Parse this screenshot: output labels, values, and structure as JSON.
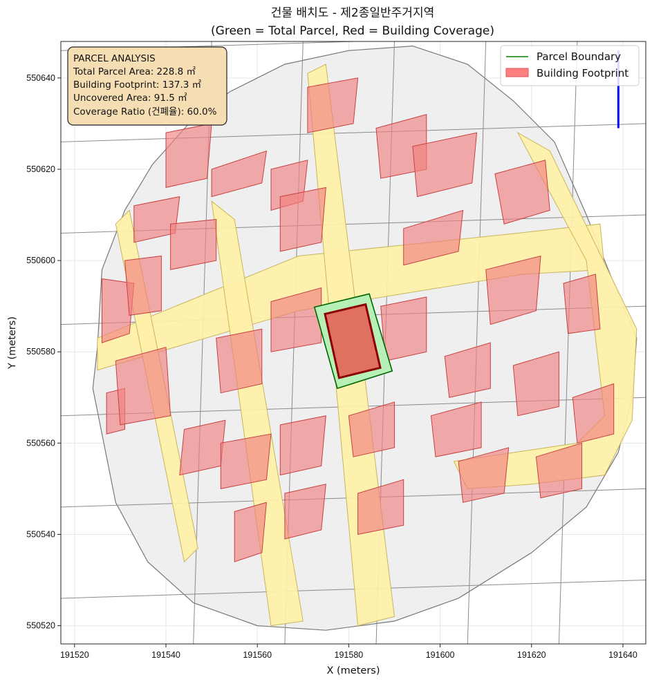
{
  "chart_data": {
    "type": "map",
    "title": "건물 배치도 - 제2종일반주거지역",
    "subtitle": "(Green = Total Parcel, Red = Building Coverage)",
    "xlabel": "X (meters)",
    "ylabel": "Y (meters)",
    "xlim": [
      191517,
      191645
    ],
    "ylim": [
      550516,
      550648
    ],
    "x_ticks": [
      191520,
      191540,
      191560,
      191580,
      191600,
      191620,
      191640
    ],
    "y_ticks": [
      550520,
      550540,
      550560,
      550580,
      550600,
      550620,
      550640
    ],
    "grid": true,
    "legend_position": "top-right",
    "legend": [
      {
        "label": "Parcel Boundary",
        "color": "#008000",
        "kind": "line"
      },
      {
        "label": "Building Footprint",
        "color": "#ff7f7f",
        "kind": "patch"
      }
    ],
    "info_box": {
      "lines": [
        "PARCEL ANALYSIS",
        "Total Parcel Area: 228.8 ㎡",
        "Building Footprint: 137.3 ㎡",
        "Uncovered Area: 91.5 ㎡",
        "Coverage Ratio (건폐율): 60.0%"
      ],
      "position": "top-left"
    },
    "metrics": {
      "total_parcel_area_m2": 228.8,
      "building_footprint_m2": 137.3,
      "uncovered_area_m2": 91.5,
      "coverage_ratio_pct": 60.0
    },
    "north_arrow": {
      "x": 191639,
      "y_start": 550629,
      "y_end": 550646,
      "color": "#0000ff"
    },
    "area_boundary": [
      [
        191525,
        550581
      ],
      [
        191526,
        550598
      ],
      [
        191531,
        550611
      ],
      [
        191537,
        550621
      ],
      [
        191545,
        550630
      ],
      [
        191554,
        550637
      ],
      [
        191566,
        550643
      ],
      [
        191580,
        550646
      ],
      [
        191594,
        550647
      ],
      [
        191606,
        550643
      ],
      [
        191616,
        550635
      ],
      [
        191625,
        550626
      ],
      [
        191632,
        550610
      ],
      [
        191638,
        550595
      ],
      [
        191643,
        550583
      ],
      [
        191642,
        550570
      ],
      [
        191639,
        550558
      ],
      [
        191632,
        550546
      ],
      [
        191620,
        550536
      ],
      [
        191604,
        550526
      ],
      [
        191590,
        550521
      ],
      [
        191575,
        550519
      ],
      [
        191560,
        550520
      ],
      [
        191546,
        550525
      ],
      [
        191536,
        550534
      ],
      [
        191529,
        550547
      ],
      [
        191526,
        550562
      ],
      [
        191524,
        550572
      ]
    ],
    "target_parcel": [
      [
        191572.5,
        550589.8
      ],
      [
        191584.5,
        550592.7
      ],
      [
        191589.5,
        550575.8
      ],
      [
        191577.5,
        550572.0
      ]
    ],
    "target_building": [
      [
        191574.8,
        550588.3
      ],
      [
        191583.7,
        550590.4
      ],
      [
        191586.9,
        550576.5
      ],
      [
        191577.9,
        550574.3
      ]
    ],
    "roads": [
      [
        [
          191525,
          550576
        ],
        [
          191569,
          550589
        ],
        [
          191618,
          550597
        ],
        [
          191636,
          550598
        ],
        [
          191635,
          550608
        ],
        [
          191617,
          550606
        ],
        [
          191569,
          550601
        ],
        [
          191525,
          550583
        ]
      ],
      [
        [
          191529,
          550608
        ],
        [
          191532,
          550611
        ],
        [
          191547,
          550537
        ],
        [
          191544,
          550534
        ]
      ],
      [
        [
          191550,
          550613
        ],
        [
          191555,
          550609
        ],
        [
          191570,
          550521
        ],
        [
          191563,
          550520
        ]
      ],
      [
        [
          191571,
          550641
        ],
        [
          191575,
          550643
        ],
        [
          191590,
          550522
        ],
        [
          191582,
          550520
        ]
      ],
      [
        [
          191617,
          550628
        ],
        [
          191624,
          550624
        ],
        [
          191643,
          550585
        ],
        [
          191642,
          550565
        ],
        [
          191636,
          550553
        ],
        [
          191620,
          550551
        ],
        [
          191606,
          550550
        ],
        [
          191603,
          550556
        ],
        [
          191630,
          550560
        ],
        [
          191636,
          550566
        ],
        [
          191632,
          550600
        ]
      ]
    ],
    "buildings": [
      [
        [
          191527,
          550571
        ],
        [
          191531,
          550572
        ],
        [
          191531,
          550563
        ],
        [
          191527,
          550562
        ]
      ],
      [
        [
          191526,
          550596
        ],
        [
          191533,
          550595
        ],
        [
          191532,
          550584
        ],
        [
          191526,
          550582
        ]
      ],
      [
        [
          191529,
          550578
        ],
        [
          191540,
          550581
        ],
        [
          191541,
          550566
        ],
        [
          191530,
          550564
        ]
      ],
      [
        [
          191531,
          550600
        ],
        [
          191539,
          550601
        ],
        [
          191539,
          550589
        ],
        [
          191532,
          550588
        ]
      ],
      [
        [
          191533,
          550612
        ],
        [
          191543,
          550614
        ],
        [
          191542,
          550606
        ],
        [
          191533,
          550604
        ]
      ],
      [
        [
          191540,
          550628
        ],
        [
          191550,
          550630
        ],
        [
          191549,
          550618
        ],
        [
          191540,
          550616
        ]
      ],
      [
        [
          191541,
          550608
        ],
        [
          191551,
          550609
        ],
        [
          191551,
          550600
        ],
        [
          191541,
          550598
        ]
      ],
      [
        [
          191544,
          550563
        ],
        [
          191553,
          550565
        ],
        [
          191552,
          550555
        ],
        [
          191543,
          550553
        ]
      ],
      [
        [
          191550,
          550620
        ],
        [
          191562,
          550624
        ],
        [
          191561,
          550617
        ],
        [
          191550,
          550614
        ]
      ],
      [
        [
          191551,
          550583
        ],
        [
          191561,
          550585
        ],
        [
          191561,
          550573
        ],
        [
          191552,
          550571
        ]
      ],
      [
        [
          191552,
          550560
        ],
        [
          191563,
          550562
        ],
        [
          191562,
          550552
        ],
        [
          191552,
          550550
        ]
      ],
      [
        [
          191555,
          550545
        ],
        [
          191562,
          550547
        ],
        [
          191561,
          550536
        ],
        [
          191555,
          550534
        ]
      ],
      [
        [
          191563,
          550591
        ],
        [
          191574,
          550594
        ],
        [
          191574,
          550582
        ],
        [
          191563,
          550580
        ]
      ],
      [
        [
          191563,
          550620
        ],
        [
          191571,
          550622
        ],
        [
          191570,
          550613
        ],
        [
          191563,
          550611
        ]
      ],
      [
        [
          191565,
          550614
        ],
        [
          191575,
          550616
        ],
        [
          191574,
          550604
        ],
        [
          191565,
          550602
        ]
      ],
      [
        [
          191565,
          550564
        ],
        [
          191575,
          550566
        ],
        [
          191574,
          550555
        ],
        [
          191565,
          550553
        ]
      ],
      [
        [
          191566,
          550549
        ],
        [
          191575,
          550551
        ],
        [
          191574,
          550541
        ],
        [
          191566,
          550539
        ]
      ],
      [
        [
          191571,
          550638
        ],
        [
          191582,
          550640
        ],
        [
          191581,
          550630
        ],
        [
          191571,
          550628
        ]
      ],
      [
        [
          191580,
          550566
        ],
        [
          191590,
          550569
        ],
        [
          191590,
          550559
        ],
        [
          191581,
          550557
        ]
      ],
      [
        [
          191582,
          550549
        ],
        [
          191592,
          550552
        ],
        [
          191592,
          550542
        ],
        [
          191582,
          550540
        ]
      ],
      [
        [
          191587,
          550590
        ],
        [
          191597,
          550592
        ],
        [
          191597,
          550580
        ],
        [
          191588,
          550578
        ]
      ],
      [
        [
          191586,
          550629
        ],
        [
          191597,
          550632
        ],
        [
          191597,
          550620
        ],
        [
          191587,
          550618
        ]
      ],
      [
        [
          191592,
          550607
        ],
        [
          191605,
          550611
        ],
        [
          191604,
          550602
        ],
        [
          191592,
          550599
        ]
      ],
      [
        [
          191594,
          550625
        ],
        [
          191608,
          550628
        ],
        [
          191607,
          550617
        ],
        [
          191595,
          550614
        ]
      ],
      [
        [
          191598,
          550566
        ],
        [
          191609,
          550569
        ],
        [
          191609,
          550559
        ],
        [
          191599,
          550557
        ]
      ],
      [
        [
          191601,
          550579
        ],
        [
          191611,
          550582
        ],
        [
          191611,
          550572
        ],
        [
          191602,
          550570
        ]
      ],
      [
        [
          191604,
          550556
        ],
        [
          191615,
          550559
        ],
        [
          191614,
          550549
        ],
        [
          191605,
          550547
        ]
      ],
      [
        [
          191610,
          550598
        ],
        [
          191622,
          550601
        ],
        [
          191621,
          550589
        ],
        [
          191611,
          550586
        ]
      ],
      [
        [
          191612,
          550619
        ],
        [
          191623,
          550622
        ],
        [
          191624,
          550611
        ],
        [
          191614,
          550608
        ]
      ],
      [
        [
          191616,
          550577
        ],
        [
          191626,
          550580
        ],
        [
          191626,
          550568
        ],
        [
          191617,
          550566
        ]
      ],
      [
        [
          191621,
          550557
        ],
        [
          191631,
          550560
        ],
        [
          191631,
          550550
        ],
        [
          191622,
          550548
        ]
      ],
      [
        [
          191627,
          550595
        ],
        [
          191634,
          550597
        ],
        [
          191635,
          550585
        ],
        [
          191628,
          550584
        ]
      ],
      [
        [
          191629,
          550570
        ],
        [
          191638,
          550573
        ],
        [
          191638,
          550562
        ],
        [
          191630,
          550560
        ]
      ]
    ]
  }
}
